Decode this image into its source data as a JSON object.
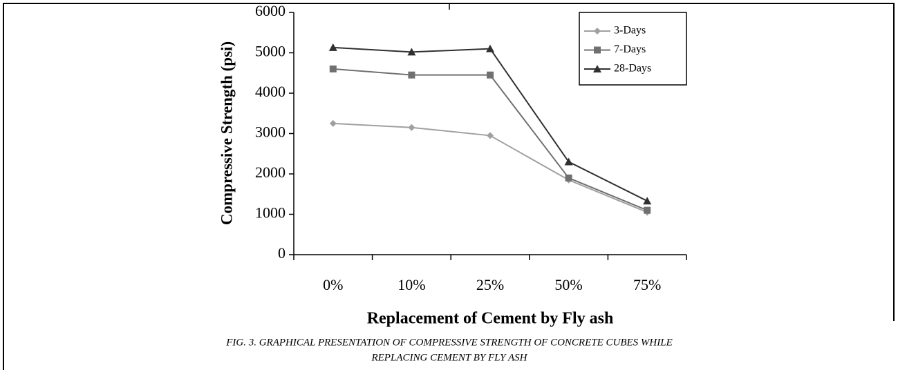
{
  "chart_data": {
    "type": "line",
    "x_label": "Replacement of Cement by Fly ash",
    "y_label": "Compressive Strength (psi)",
    "caption": [
      "FIG. 3. GRAPHICAL PRESENTATION OF COMPRESSIVE STRENGTH OF CONCRETE CUBES WHILE",
      "REPLACING CEMENT BY FLY ASH"
    ],
    "categories": [
      "0%",
      "10%",
      "25%",
      "50%",
      "75%"
    ],
    "series": [
      {
        "name": "3-Days",
        "color": "#a0a0a0",
        "marker": "diamond",
        "values": [
          3250,
          3150,
          2950,
          1850,
          1050
        ]
      },
      {
        "name": "7-Days",
        "color": "#707070",
        "marker": "square",
        "values": [
          4600,
          4450,
          4450,
          1900,
          1100
        ]
      },
      {
        "name": "28-Days",
        "color": "#303030",
        "marker": "triangle",
        "values": [
          5130,
          5020,
          5100,
          2300,
          1330
        ]
      }
    ],
    "ylim": [
      0,
      6000
    ],
    "yticks": [
      0,
      1000,
      2000,
      3000,
      4000,
      5000,
      6000
    ],
    "legend": "upper right"
  }
}
